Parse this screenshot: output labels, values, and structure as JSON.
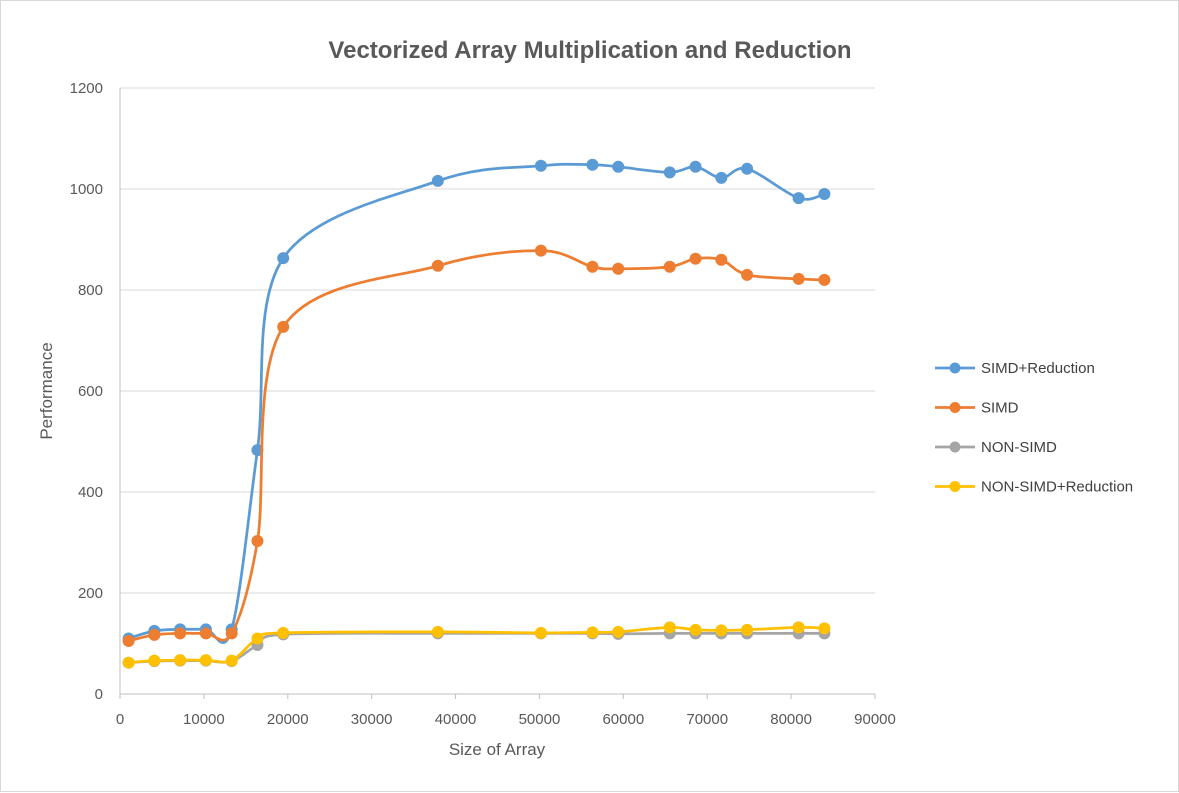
{
  "chart_data": {
    "type": "line",
    "title": "Vectorized Array Multiplication and Reduction",
    "xlabel": "Size of Array",
    "ylabel": "Performance",
    "xlim": [
      0,
      90000
    ],
    "ylim": [
      0,
      1200
    ],
    "xticks": [
      "0",
      "10000",
      "20000",
      "30000",
      "40000",
      "50000",
      "60000",
      "70000",
      "80000",
      "90000"
    ],
    "yticks": [
      "0",
      "200",
      "400",
      "600",
      "800",
      "1000",
      "1200"
    ],
    "grid": "horizontal",
    "legend_position": "right",
    "smooth": true,
    "series": [
      {
        "name": "SIMD+Reduction",
        "color": "#5b9bd5",
        "x": [
          1024,
          4096,
          7168,
          10240,
          13312,
          16384,
          19456,
          37888,
          50176,
          56320,
          59392,
          65536,
          68608,
          71680,
          74752,
          80896,
          83968
        ],
        "y": [
          110,
          125,
          128,
          128,
          128,
          483,
          863,
          1016,
          1046,
          1048,
          1044,
          1033,
          1044,
          1022,
          1040,
          982,
          990
        ]
      },
      {
        "name": "SIMD",
        "color": "#ed7d31",
        "x": [
          1024,
          4096,
          7168,
          10240,
          13312,
          16384,
          19456,
          37888,
          50176,
          56320,
          59392,
          65536,
          68608,
          71680,
          74752,
          80896,
          83968
        ],
        "y": [
          105,
          117,
          120,
          120,
          120,
          303,
          727,
          848,
          878,
          846,
          842,
          846,
          862,
          860,
          830,
          822,
          820
        ]
      },
      {
        "name": "NON-SIMD",
        "color": "#a5a5a5",
        "x": [
          1024,
          4096,
          7168,
          10240,
          13312,
          16384,
          19456,
          37888,
          50176,
          56320,
          59392,
          65536,
          68608,
          71680,
          74752,
          80896,
          83968
        ],
        "y": [
          62,
          65,
          66,
          66,
          65,
          97,
          118,
          120,
          120,
          120,
          119,
          120,
          120,
          120,
          120,
          120,
          120
        ]
      },
      {
        "name": "NON-SIMD+Reduction",
        "color": "#ffc000",
        "x": [
          1024,
          4096,
          7168,
          10240,
          13312,
          16384,
          19456,
          37888,
          50176,
          56320,
          59392,
          65536,
          68608,
          71680,
          74752,
          80896,
          83968
        ],
        "y": [
          62,
          66,
          67,
          67,
          66,
          110,
          121,
          123,
          121,
          122,
          123,
          132,
          127,
          126,
          127,
          132,
          130
        ]
      }
    ]
  }
}
